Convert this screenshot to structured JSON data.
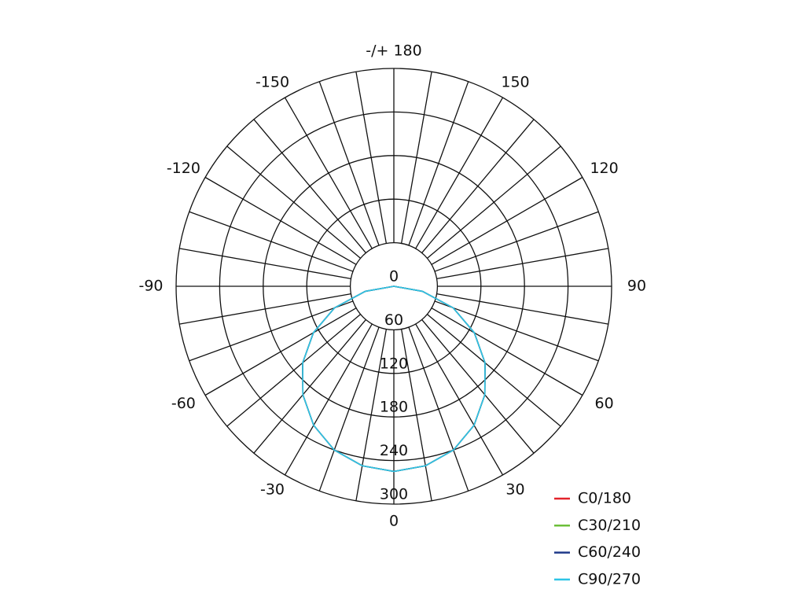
{
  "chart_data": {
    "type": "polar",
    "x": [
      -90,
      -80,
      -70,
      -60,
      -50,
      -40,
      -30,
      -20,
      -10,
      0,
      10,
      20,
      30,
      40,
      50,
      60,
      70,
      80,
      90
    ],
    "series": [
      {
        "name": "C0/180",
        "color": "#e3242b",
        "values": [
          0,
          40,
          87,
          128,
          164,
          195,
          221,
          240,
          251,
          255,
          251,
          240,
          221,
          195,
          164,
          128,
          87,
          40,
          0
        ]
      },
      {
        "name": "C30/210",
        "color": "#6cbf3a",
        "values": [
          0,
          40,
          87,
          128,
          164,
          195,
          221,
          240,
          251,
          255,
          251,
          240,
          221,
          195,
          164,
          128,
          87,
          40,
          0
        ]
      },
      {
        "name": "C60/240",
        "color": "#1f3a8a",
        "values": [
          0,
          40,
          87,
          128,
          164,
          195,
          221,
          240,
          251,
          255,
          251,
          240,
          221,
          195,
          164,
          128,
          87,
          40,
          0
        ]
      },
      {
        "name": "C90/270",
        "color": "#2ec4e6",
        "values": [
          0,
          40,
          87,
          128,
          164,
          195,
          221,
          240,
          251,
          255,
          251,
          240,
          221,
          195,
          164,
          128,
          87,
          40,
          0
        ]
      }
    ],
    "rlim": [
      0,
      300
    ],
    "rticks": [
      0,
      60,
      120,
      180,
      240,
      300
    ],
    "xticks": [
      0,
      30,
      60,
      90,
      120,
      150,
      {
        "value": 180,
        "label": "-/+ 180"
      },
      -150,
      -120,
      -90,
      -60,
      -30
    ],
    "theta_grid_step": 10,
    "legend": "lower-right"
  }
}
